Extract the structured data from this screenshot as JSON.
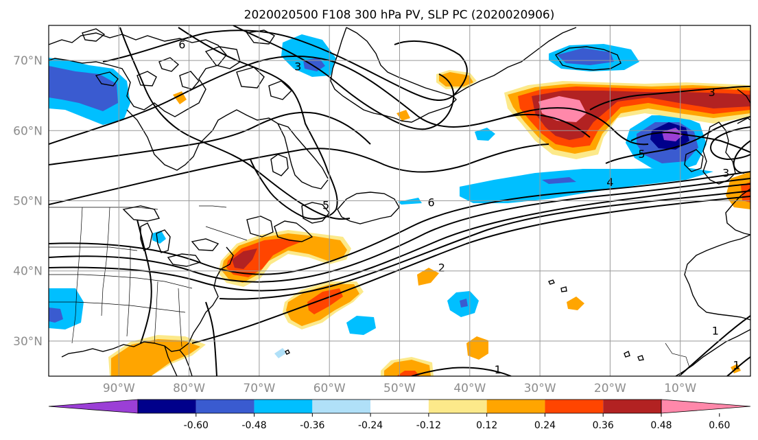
{
  "title": "2020020500 F108 300 hPa PV, SLP PC (2020020906)",
  "map": {
    "lon_range": [
      -100,
      0
    ],
    "lat_range": [
      25,
      75
    ],
    "lon_ticks": [
      {
        "value": -90,
        "label": "90°W"
      },
      {
        "value": -80,
        "label": "80°W"
      },
      {
        "value": -70,
        "label": "70°W"
      },
      {
        "value": -60,
        "label": "60°W"
      },
      {
        "value": -50,
        "label": "50°W"
      },
      {
        "value": -40,
        "label": "40°W"
      },
      {
        "value": -30,
        "label": "30°W"
      },
      {
        "value": -20,
        "label": "20°W"
      },
      {
        "value": -10,
        "label": "10°W"
      }
    ],
    "lat_ticks": [
      {
        "value": 70,
        "label": "70°N"
      },
      {
        "value": 60,
        "label": "60°N"
      },
      {
        "value": 50,
        "label": "50°N"
      },
      {
        "value": 40,
        "label": "40°N"
      },
      {
        "value": 30,
        "label": "30°N"
      }
    ],
    "grid": true
  },
  "colorbar": {
    "ticks": [
      "-0.60",
      "-0.48",
      "-0.36",
      "-0.24",
      "-0.12",
      "0.12",
      "0.24",
      "0.36",
      "0.48",
      "0.60"
    ],
    "colors": [
      "#9b3fd6",
      "#00008b",
      "#3a5bd0",
      "#00bfff",
      "#b0e0f8",
      "#ffffff",
      "#fce98a",
      "#ffa500",
      "#ff4500",
      "#b22222",
      "#ff88aa"
    ],
    "extend": "both"
  },
  "slp_contour_labels": [
    {
      "text": "3",
      "lon": -64.5,
      "lat": 69.2
    },
    {
      "text": "6",
      "lon": -81,
      "lat": 72.3
    },
    {
      "text": "3",
      "lon": -5.5,
      "lat": 65.5
    },
    {
      "text": "5",
      "lon": -15.5,
      "lat": 56.7
    },
    {
      "text": "4",
      "lon": -20,
      "lat": 52.7
    },
    {
      "text": "3",
      "lon": -3.5,
      "lat": 54
    },
    {
      "text": "6",
      "lon": -45.5,
      "lat": 49.8
    },
    {
      "text": "5",
      "lon": -60.5,
      "lat": 49.4
    },
    {
      "text": "2",
      "lon": -44,
      "lat": 40.5
    },
    {
      "text": "1",
      "lon": -36,
      "lat": 26
    },
    {
      "text": "1",
      "lon": -5,
      "lat": 31.5
    },
    {
      "text": "1",
      "lon": -2,
      "lat": 26.6
    }
  ]
}
